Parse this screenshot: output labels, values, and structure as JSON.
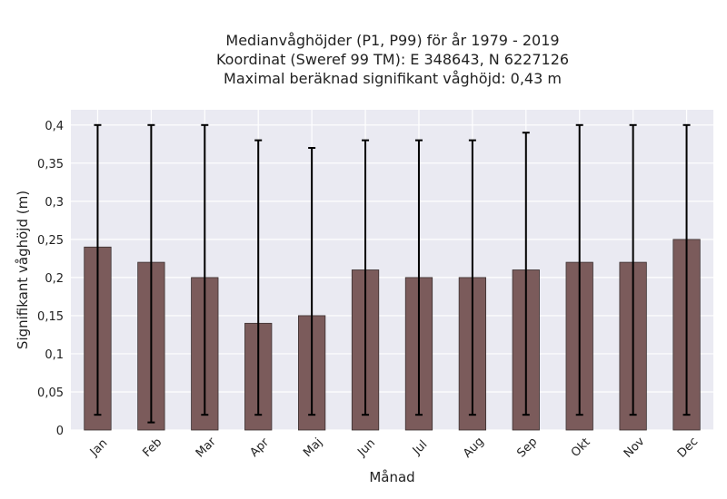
{
  "chart_data": {
    "type": "bar",
    "title_lines": [
      "Medianvåghöjder (P1, P99) för år 1979 - 2019",
      "Koordinat (Sweref 99 TM): E 348643, N 6227126",
      "Maximal beräknad signifikant våghöjd: 0,43 m"
    ],
    "xlabel": "Månad",
    "ylabel": "Signifikant våghöjd (m)",
    "categories": [
      "Jan",
      "Feb",
      "Mar",
      "Apr",
      "Maj",
      "Jun",
      "Jul",
      "Aug",
      "Sep",
      "Okt",
      "Nov",
      "Dec"
    ],
    "values": [
      0.24,
      0.22,
      0.2,
      0.14,
      0.15,
      0.21,
      0.2,
      0.2,
      0.21,
      0.22,
      0.22,
      0.25
    ],
    "err_low": [
      0.02,
      0.01,
      0.02,
      0.02,
      0.02,
      0.02,
      0.02,
      0.02,
      0.02,
      0.02,
      0.02,
      0.02
    ],
    "err_high": [
      0.4,
      0.4,
      0.4,
      0.38,
      0.37,
      0.38,
      0.38,
      0.38,
      0.39,
      0.4,
      0.4,
      0.4
    ],
    "ylim": [
      0,
      0.42
    ],
    "yticks": [
      0,
      0.05,
      0.1,
      0.15,
      0.2,
      0.25,
      0.3,
      0.35,
      0.4
    ],
    "ytick_labels": [
      "0",
      "0,05",
      "0,1",
      "0,15",
      "0,2",
      "0,25",
      "0,3",
      "0,35",
      "0,4"
    ],
    "grid": true,
    "colors": {
      "bar": "#7b5b5b",
      "plot_bg": "#eaeaf2",
      "grid": "#ffffff",
      "error": "#000000"
    }
  }
}
